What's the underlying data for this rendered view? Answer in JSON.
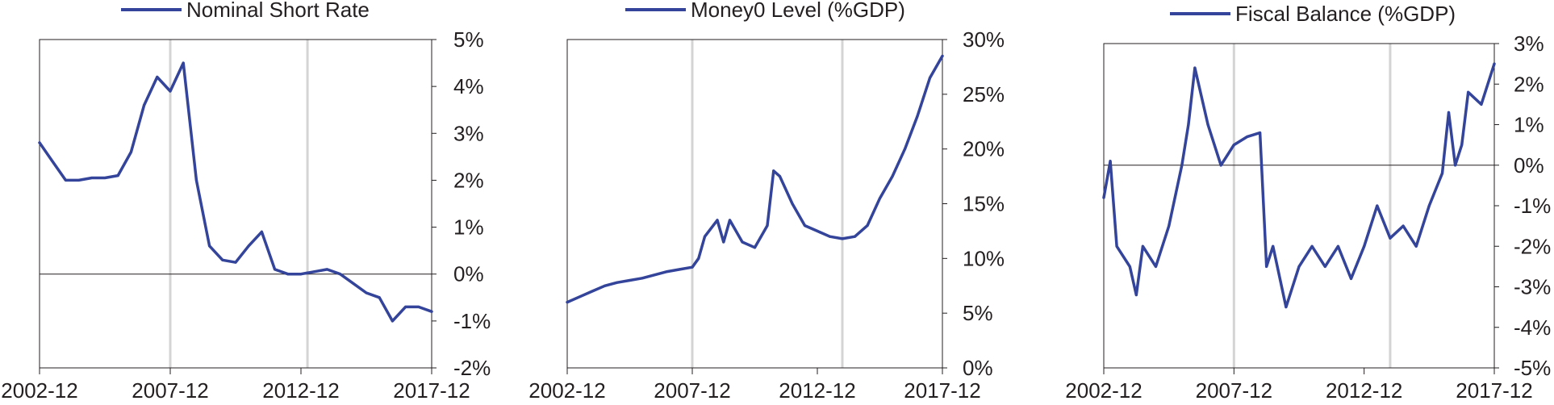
{
  "chart_data": [
    {
      "type": "line",
      "series": [
        {
          "name": "Nominal Short Rate"
        }
      ],
      "x_ticks": [
        "2002-12",
        "2007-12",
        "2012-12",
        "2017-12"
      ],
      "y_ticks": [
        "5%",
        "4%",
        "3%",
        "2%",
        "1%",
        "0%",
        "-1%",
        "-2%"
      ],
      "ylim": [
        -2,
        5
      ],
      "recession_markers": [
        "2007-12",
        "2013-03"
      ],
      "grid": false,
      "legend": "top-center",
      "x": [
        "2002-12",
        "2003-06",
        "2003-12",
        "2004-06",
        "2004-12",
        "2005-06",
        "2005-12",
        "2006-06",
        "2006-12",
        "2007-06",
        "2007-12",
        "2008-06",
        "2008-12",
        "2009-06",
        "2009-12",
        "2010-06",
        "2010-12",
        "2011-06",
        "2011-12",
        "2012-06",
        "2012-12",
        "2013-06",
        "2013-12",
        "2014-06",
        "2014-12",
        "2015-06",
        "2015-12",
        "2016-06",
        "2016-12",
        "2017-06",
        "2017-12"
      ],
      "values": [
        2.8,
        2.4,
        2.0,
        2.0,
        2.05,
        2.05,
        2.1,
        2.6,
        3.6,
        4.2,
        3.9,
        4.5,
        2.0,
        0.6,
        0.3,
        0.25,
        0.6,
        0.9,
        0.1,
        0.0,
        0.0,
        0.05,
        0.1,
        0.0,
        -0.2,
        -0.4,
        -0.5,
        -1.0,
        -0.7,
        -0.7,
        -0.8
      ]
    },
    {
      "type": "line",
      "series": [
        {
          "name": "Money0 Level (%GDP)"
        }
      ],
      "x_ticks": [
        "2002-12",
        "2007-12",
        "2012-12",
        "2017-12"
      ],
      "y_ticks": [
        "30%",
        "25%",
        "20%",
        "15%",
        "10%",
        "5%",
        "0%"
      ],
      "ylim": [
        0,
        30
      ],
      "recession_markers": [
        "2007-12",
        "2013-12"
      ],
      "grid": false,
      "legend": "top-center",
      "x": [
        "2002-12",
        "2003-06",
        "2003-12",
        "2004-06",
        "2004-12",
        "2005-06",
        "2005-12",
        "2006-06",
        "2006-12",
        "2007-06",
        "2007-12",
        "2008-03",
        "2008-06",
        "2008-12",
        "2009-03",
        "2009-06",
        "2009-12",
        "2010-06",
        "2010-12",
        "2011-03",
        "2011-06",
        "2011-12",
        "2012-06",
        "2012-12",
        "2013-06",
        "2013-12",
        "2014-06",
        "2014-12",
        "2015-06",
        "2015-12",
        "2016-06",
        "2016-12",
        "2017-06",
        "2017-12"
      ],
      "values": [
        6.0,
        6.5,
        7.0,
        7.5,
        7.8,
        8.0,
        8.2,
        8.5,
        8.8,
        9.0,
        9.2,
        10.0,
        12.0,
        13.5,
        11.5,
        13.5,
        11.5,
        11.0,
        13.0,
        18.0,
        17.5,
        15.0,
        13.0,
        12.5,
        12.0,
        11.8,
        12.0,
        13.0,
        15.5,
        17.5,
        20.0,
        23.0,
        26.5,
        28.5
      ]
    },
    {
      "type": "line",
      "series": [
        {
          "name": "Fiscal Balance (%GDP)"
        }
      ],
      "x_ticks": [
        "2002-12",
        "2007-12",
        "2012-12",
        "2017-12"
      ],
      "y_ticks": [
        "3%",
        "2%",
        "1%",
        "0%",
        "-1%",
        "-2%",
        "-3%",
        "-4%",
        "-5%"
      ],
      "ylim": [
        -5,
        3
      ],
      "recession_markers": [
        "2007-12",
        "2013-12"
      ],
      "grid": false,
      "legend": "top-center",
      "x": [
        "2002-12",
        "2003-03",
        "2003-06",
        "2003-12",
        "2004-03",
        "2004-06",
        "2004-12",
        "2005-06",
        "2005-12",
        "2006-03",
        "2006-06",
        "2006-12",
        "2007-06",
        "2007-12",
        "2008-06",
        "2008-12",
        "2009-03",
        "2009-06",
        "2009-12",
        "2010-06",
        "2010-12",
        "2011-06",
        "2011-12",
        "2012-06",
        "2012-12",
        "2013-06",
        "2013-12",
        "2014-06",
        "2014-12",
        "2015-06",
        "2015-12",
        "2016-03",
        "2016-06",
        "2016-09",
        "2016-12",
        "2017-06",
        "2017-12"
      ],
      "values": [
        -0.8,
        0.1,
        -2.0,
        -2.5,
        -3.2,
        -2.0,
        -2.5,
        -1.5,
        0.0,
        1.0,
        2.4,
        1.0,
        0.0,
        0.5,
        0.7,
        0.8,
        -2.5,
        -2.0,
        -3.5,
        -2.5,
        -2.0,
        -2.5,
        -2.0,
        -2.8,
        -2.0,
        -1.0,
        -1.8,
        -1.5,
        -2.0,
        -1.0,
        -0.2,
        1.3,
        0.0,
        0.5,
        1.8,
        1.5,
        2.5
      ]
    }
  ]
}
